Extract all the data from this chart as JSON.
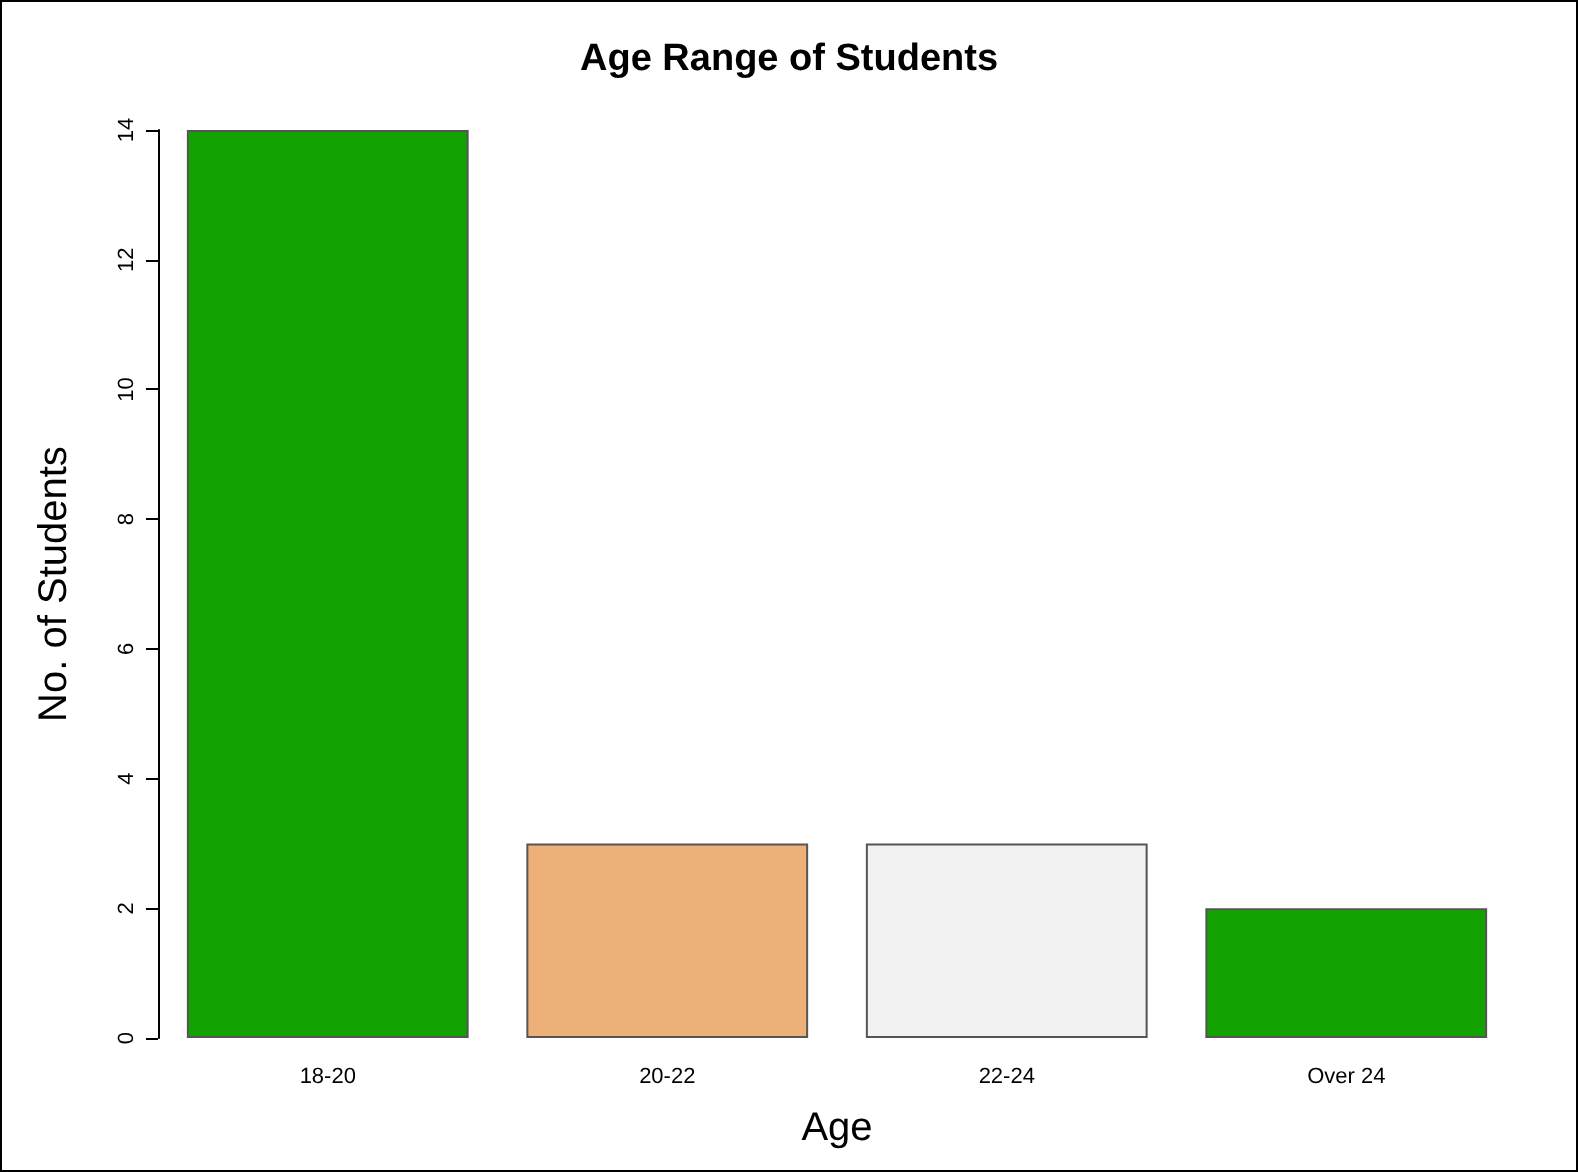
{
  "chart_data": {
    "type": "bar",
    "title": "Age Range of Students",
    "xlabel": "Age",
    "ylabel": "No. of Students",
    "categories": [
      "18-20",
      "20-22",
      "22-24",
      "Over 24"
    ],
    "values": [
      14,
      3,
      3,
      2
    ],
    "colors": [
      "#12a300",
      "#edb078",
      "#f2f2f2",
      "#12a300"
    ],
    "ylim": [
      0,
      14
    ],
    "yticks": [
      0,
      2,
      4,
      6,
      8,
      10,
      12,
      14
    ]
  }
}
